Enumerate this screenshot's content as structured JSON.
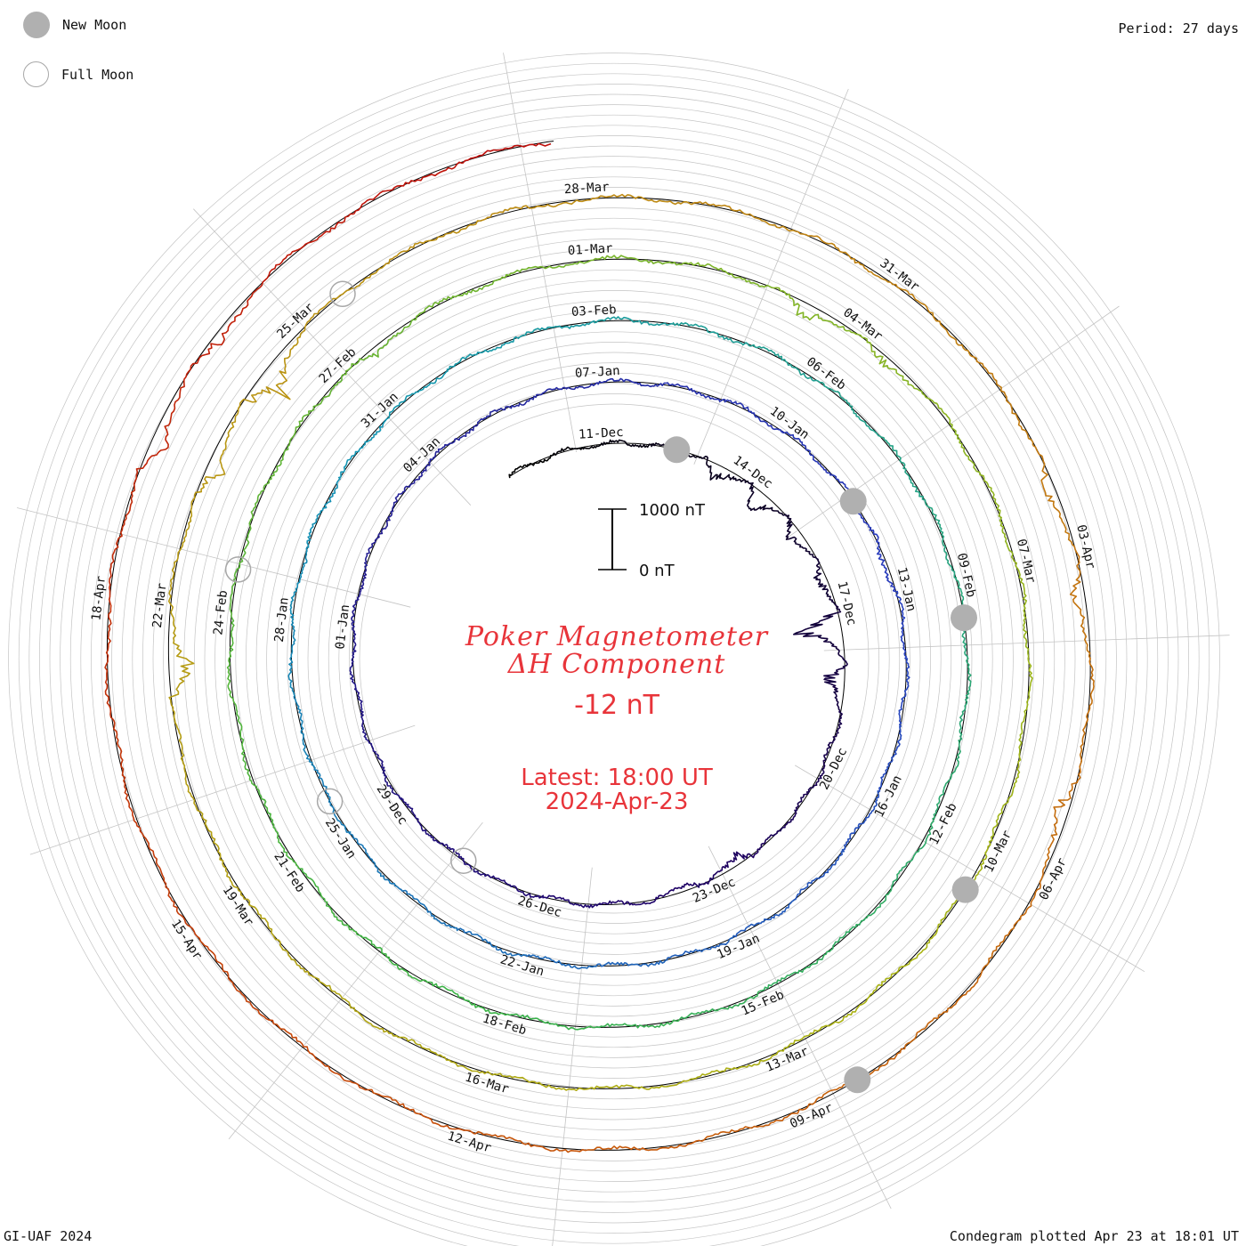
{
  "legend": {
    "new_moon": {
      "label": "New Moon",
      "icon": "new-moon-icon",
      "color": "#b0b0b0"
    },
    "full_moon": {
      "label": "Full Moon",
      "icon": "full-moon-icon",
      "color": "#a8a8a8"
    }
  },
  "period_label": "Period: 27 days",
  "footer": {
    "left": "GI-UAF 2024",
    "right": "Condegram plotted Apr 23 at 18:01 UT"
  },
  "title": {
    "line1": "Poker Magnetometer",
    "line2": "ΔH Component",
    "value": "-12 nT",
    "latest": "Latest: 18:00 UT",
    "date": "2024-Apr-23",
    "color": "#e8343a"
  },
  "scale_bar": {
    "top_label": "1000 nT",
    "bottom_label": "0 nT"
  },
  "chart_data": {
    "type": "line",
    "form": "spiral condegram",
    "period_days": 27,
    "start_date": "2023-12-09",
    "end_date": "2024-04-23",
    "value_unit": "nT",
    "latest_value": -12,
    "date_labels": [
      {
        "label": "11-Dec",
        "day": 2
      },
      {
        "label": "14-Dec",
        "day": 5
      },
      {
        "label": "17-Dec",
        "day": 8
      },
      {
        "label": "20-Dec",
        "day": 11
      },
      {
        "label": "23-Dec",
        "day": 14
      },
      {
        "label": "26-Dec",
        "day": 17
      },
      {
        "label": "29-Dec",
        "day": 20
      },
      {
        "label": "01-Jan",
        "day": 23
      },
      {
        "label": "04-Jan",
        "day": 26
      },
      {
        "label": "07-Jan",
        "day": 29
      },
      {
        "label": "10-Jan",
        "day": 32
      },
      {
        "label": "13-Jan",
        "day": 35
      },
      {
        "label": "16-Jan",
        "day": 38
      },
      {
        "label": "19-Jan",
        "day": 41
      },
      {
        "label": "22-Jan",
        "day": 44
      },
      {
        "label": "25-Jan",
        "day": 47
      },
      {
        "label": "28-Jan",
        "day": 50
      },
      {
        "label": "31-Jan",
        "day": 53
      },
      {
        "label": "03-Feb",
        "day": 56
      },
      {
        "label": "06-Feb",
        "day": 59
      },
      {
        "label": "09-Feb",
        "day": 62
      },
      {
        "label": "12-Feb",
        "day": 65
      },
      {
        "label": "15-Feb",
        "day": 68
      },
      {
        "label": "18-Feb",
        "day": 71
      },
      {
        "label": "21-Feb",
        "day": 74
      },
      {
        "label": "24-Feb",
        "day": 77
      },
      {
        "label": "27-Feb",
        "day": 80
      },
      {
        "label": "01-Mar",
        "day": 83
      },
      {
        "label": "04-Mar",
        "day": 86
      },
      {
        "label": "07-Mar",
        "day": 89
      },
      {
        "label": "10-Mar",
        "day": 92
      },
      {
        "label": "13-Mar",
        "day": 95
      },
      {
        "label": "16-Mar",
        "day": 98
      },
      {
        "label": "19-Mar",
        "day": 101
      },
      {
        "label": "22-Mar",
        "day": 104
      },
      {
        "label": "25-Mar",
        "day": 107
      },
      {
        "label": "28-Mar",
        "day": 110
      },
      {
        "label": "31-Mar",
        "day": 113
      },
      {
        "label": "03-Apr",
        "day": 116
      },
      {
        "label": "06-Apr",
        "day": 119
      },
      {
        "label": "09-Apr",
        "day": 122
      },
      {
        "label": "12-Apr",
        "day": 125
      },
      {
        "label": "15-Apr",
        "day": 128
      },
      {
        "label": "18-Apr",
        "day": 131
      }
    ],
    "new_moons": [
      "2023-12-12",
      "2024-01-11",
      "2024-02-09",
      "2024-03-10",
      "2024-04-08"
    ],
    "full_moons": [
      "2023-12-27",
      "2024-01-25",
      "2024-02-24",
      "2024-03-25"
    ],
    "disturbances": [
      {
        "date": "2023-12-13",
        "nT": 400
      },
      {
        "date": "2023-12-14",
        "nT": 550
      },
      {
        "date": "2023-12-15",
        "nT": 350
      },
      {
        "date": "2023-12-16",
        "nT": 300
      },
      {
        "date": "2023-12-17",
        "nT": 1100
      },
      {
        "date": "2023-12-18",
        "nT": 500
      },
      {
        "date": "2023-12-22",
        "nT": 300
      },
      {
        "date": "2023-12-23",
        "nT": 180
      },
      {
        "date": "2024-01-12",
        "nT": 150
      },
      {
        "date": "2024-02-27",
        "nT": 200
      },
      {
        "date": "2024-03-03",
        "nT": 350
      },
      {
        "date": "2024-03-04",
        "nT": 250
      },
      {
        "date": "2024-03-21",
        "nT": 550
      },
      {
        "date": "2024-03-23",
        "nT": 400
      },
      {
        "date": "2024-03-24",
        "nT": 700
      },
      {
        "date": "2024-04-02",
        "nT": 300
      },
      {
        "date": "2024-04-03",
        "nT": 300
      },
      {
        "date": "2024-04-05",
        "nT": 350
      },
      {
        "date": "2024-04-19",
        "nT": 400
      },
      {
        "date": "2024-04-20",
        "nT": 250
      }
    ]
  }
}
